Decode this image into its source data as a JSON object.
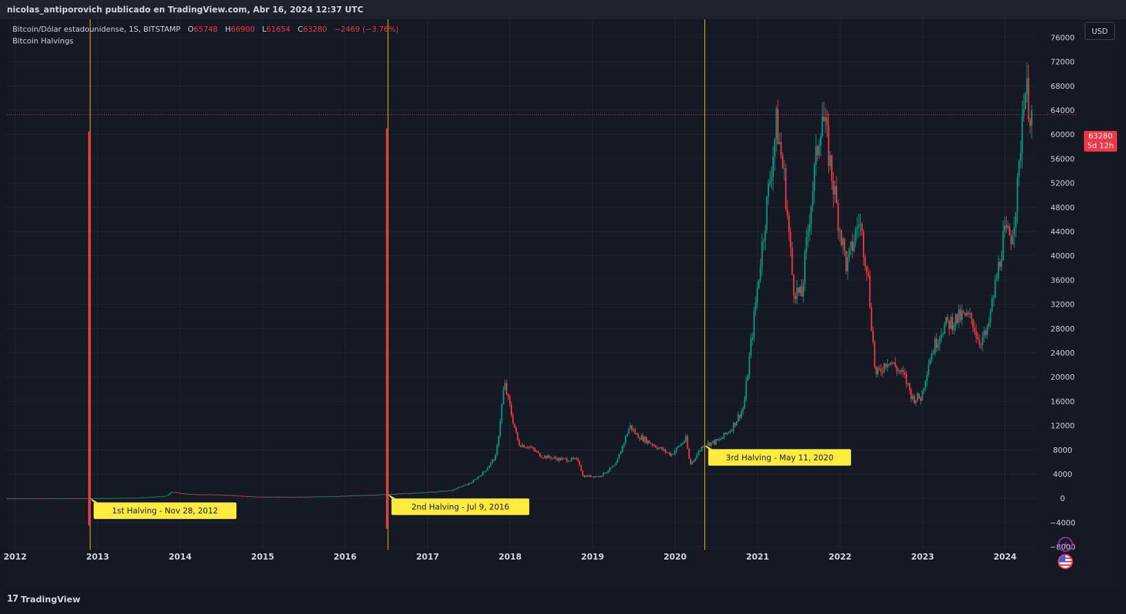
{
  "header": {
    "publish_line": "nicolas_antiporovich publicado en TradingView.com, Abr 16, 2024 12:37 UTC"
  },
  "legend": {
    "symbol_line": "Bitcoin/Dólar estadounidense, 1S, BITSTAMP",
    "o_key": "O",
    "o_val": "65748",
    "h_key": "H",
    "h_val": "66900",
    "l_key": "L",
    "l_val": "61654",
    "c_key": "C",
    "c_val": "63280",
    "change": "−2469 (−3.76%)",
    "indicator": "Bitcoin Halvings"
  },
  "currency_button": "USD",
  "last_price_tag": {
    "price": "63280",
    "countdown": "5d 12h"
  },
  "brand": {
    "logo": "𝟭𝟳",
    "name": "TradingView"
  },
  "colors": {
    "background": "#131722",
    "grid": "#1f2430",
    "up": "#089981",
    "down": "#f23645",
    "halving_line": "#f7c512",
    "label_bg": "#ffeb3b",
    "text": "#d1d4dc"
  },
  "chart_data": {
    "type": "candlestick",
    "y_ticks": [
      76000,
      72000,
      68000,
      64000,
      60000,
      56000,
      52000,
      48000,
      44000,
      40000,
      36000,
      32000,
      28000,
      24000,
      20000,
      16000,
      12000,
      8000,
      4000,
      0,
      -4000,
      -8000
    ],
    "x_ticks": [
      "2012",
      "2013",
      "2014",
      "2015",
      "2016",
      "2017",
      "2018",
      "2019",
      "2020",
      "2021",
      "2022",
      "2023",
      "2024"
    ],
    "ylim": [
      -8500,
      79000
    ],
    "xlim": [
      2011.9,
      2024.38
    ],
    "last_price": 63280,
    "halvings": [
      {
        "x": 2012.91,
        "label": "1st Halving - Nov 28, 2012",
        "bar_high": 60500,
        "bar_low": -4500
      },
      {
        "x": 2016.52,
        "label": "2nd Halving - Jul 9, 2016",
        "bar_high": 61000,
        "bar_low": -5000
      },
      {
        "x": 2020.36,
        "label": "3rd Halving - May 11, 2020"
      }
    ],
    "price_path": [
      [
        2011.9,
        5
      ],
      [
        2012.5,
        8
      ],
      [
        2012.9,
        12
      ],
      [
        2013.2,
        50
      ],
      [
        2013.5,
        100
      ],
      [
        2013.85,
        400
      ],
      [
        2013.92,
        1100
      ],
      [
        2014.1,
        700
      ],
      [
        2014.5,
        600
      ],
      [
        2015.0,
        250
      ],
      [
        2015.5,
        250
      ],
      [
        2016.0,
        400
      ],
      [
        2016.5,
        650
      ],
      [
        2017.0,
        1000
      ],
      [
        2017.3,
        1300
      ],
      [
        2017.55,
        2600
      ],
      [
        2017.7,
        4300
      ],
      [
        2017.85,
        7000
      ],
      [
        2017.95,
        19000
      ],
      [
        2018.05,
        13000
      ],
      [
        2018.12,
        9000
      ],
      [
        2018.25,
        8500
      ],
      [
        2018.4,
        7000
      ],
      [
        2018.6,
        6500
      ],
      [
        2018.85,
        6300
      ],
      [
        2018.9,
        3700
      ],
      [
        2019.1,
        3600
      ],
      [
        2019.3,
        5500
      ],
      [
        2019.47,
        12000
      ],
      [
        2019.55,
        10500
      ],
      [
        2019.8,
        8500
      ],
      [
        2019.97,
        7200
      ],
      [
        2020.15,
        9800
      ],
      [
        2020.2,
        5500
      ],
      [
        2020.36,
        8800
      ],
      [
        2020.55,
        9500
      ],
      [
        2020.7,
        11500
      ],
      [
        2020.85,
        15000
      ],
      [
        2020.97,
        29000
      ],
      [
        2021.1,
        45000
      ],
      [
        2021.25,
        62000
      ],
      [
        2021.35,
        52000
      ],
      [
        2021.45,
        35000
      ],
      [
        2021.55,
        33000
      ],
      [
        2021.65,
        47000
      ],
      [
        2021.8,
        64000
      ],
      [
        2021.88,
        57000
      ],
      [
        2022.0,
        46000
      ],
      [
        2022.1,
        38000
      ],
      [
        2022.25,
        46000
      ],
      [
        2022.35,
        38000
      ],
      [
        2022.45,
        20000
      ],
      [
        2022.6,
        23000
      ],
      [
        2022.8,
        20000
      ],
      [
        2022.9,
        16500
      ],
      [
        2023.0,
        16600
      ],
      [
        2023.1,
        23000
      ],
      [
        2023.25,
        28000
      ],
      [
        2023.35,
        29000
      ],
      [
        2023.5,
        30000
      ],
      [
        2023.62,
        29500
      ],
      [
        2023.7,
        26000
      ],
      [
        2023.8,
        27000
      ],
      [
        2023.9,
        35000
      ],
      [
        2024.0,
        43000
      ],
      [
        2024.1,
        43500
      ],
      [
        2024.18,
        52000
      ],
      [
        2024.22,
        62000
      ],
      [
        2024.25,
        68000
      ],
      [
        2024.3,
        66000
      ],
      [
        2024.33,
        63280
      ]
    ]
  }
}
